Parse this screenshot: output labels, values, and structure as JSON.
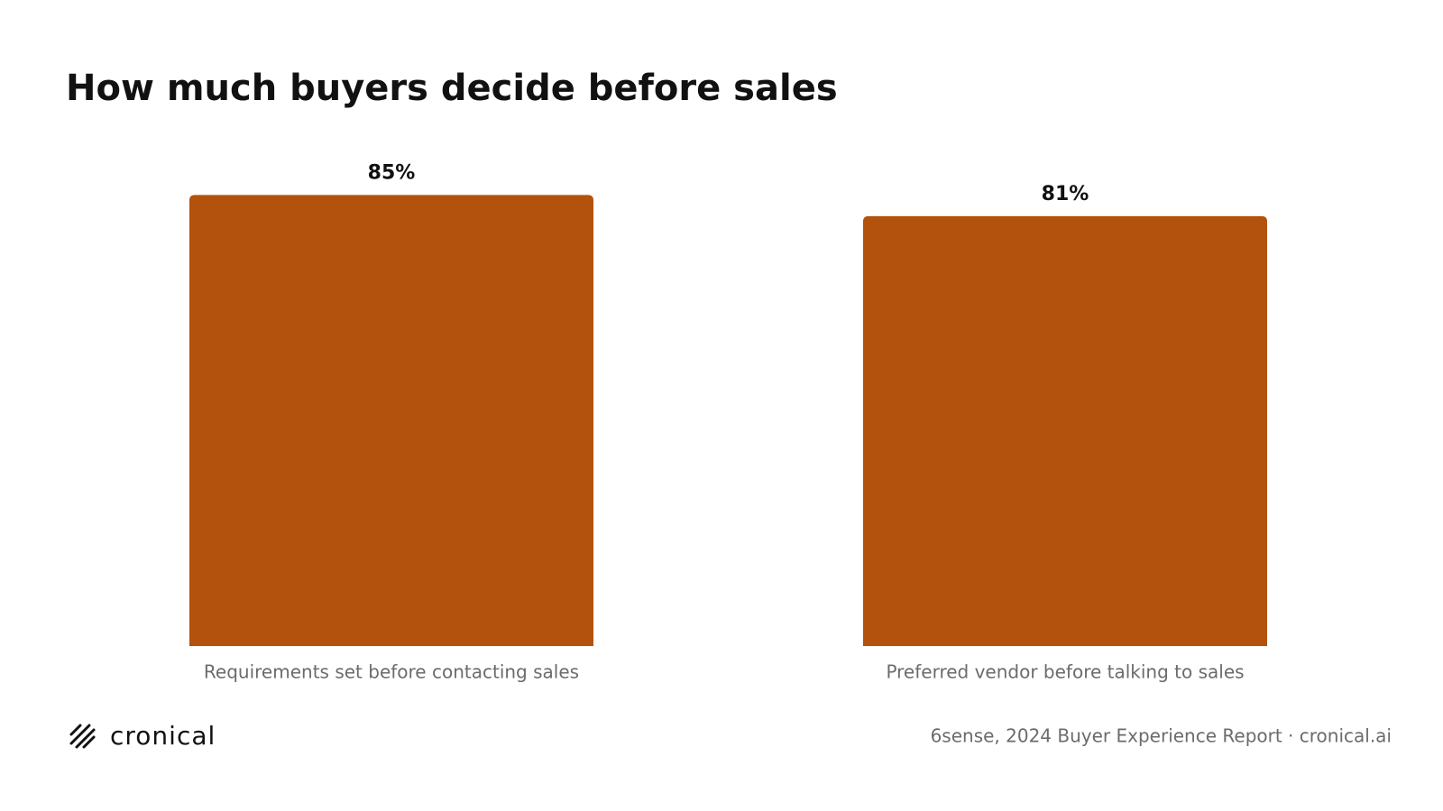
{
  "chart_data": {
    "type": "bar",
    "title": "How much buyers decide before sales",
    "categories": [
      "Requirements set before contacting sales",
      "Preferred vendor before talking to sales"
    ],
    "values": [
      85,
      81
    ],
    "value_labels": [
      "85%",
      "81%"
    ],
    "color": "#b3520c",
    "ylim": [
      0,
      100
    ],
    "brand": "cronical",
    "source": "6sense, 2024 Buyer Experience Report · cronical.ai"
  }
}
